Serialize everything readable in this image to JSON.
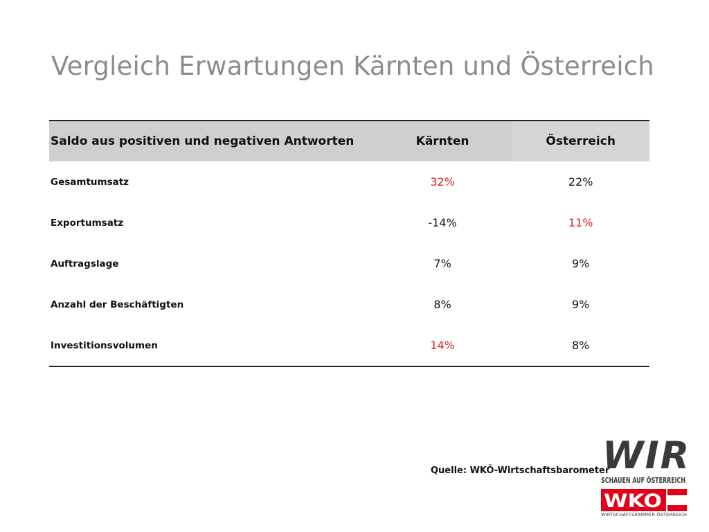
{
  "title": "Vergleich Erwartungen Kärnten und Österreich",
  "table": {
    "headers": [
      "Saldo aus positiven und negativen Antworten",
      "Kärnten",
      "Österreich"
    ],
    "rows": [
      {
        "label": "Gesamtumsatz",
        "kaernten": "32%",
        "oesterreich": "22%"
      },
      {
        "label": "Exportumsatz",
        "kaernten": "-14%",
        "oesterreich": "11%"
      },
      {
        "label": "Auftragslage",
        "kaernten": "7%",
        "oesterreich": "9%"
      },
      {
        "label": "Anzahl der Beschäftigten",
        "kaernten": "8%",
        "oesterreich": "9%"
      },
      {
        "label": "Investitionsvolumen",
        "kaernten": "14%",
        "oesterreich": "8%"
      }
    ]
  },
  "colors": {
    "highlight": "#e11d1d",
    "title": "#8c8c8c",
    "header_bg": "#cfcfcf",
    "brand_red": "#e2001a"
  },
  "source": "Quelle: WKÖ-Wirtschaftsbarometer",
  "logo": {
    "wir": "WIR",
    "tagline": "SCHAUEN AUF ÖSTERREICH",
    "wko": "WKO",
    "subline": "WIRTSCHAFTSKAMMER ÖSTERREICH"
  }
}
